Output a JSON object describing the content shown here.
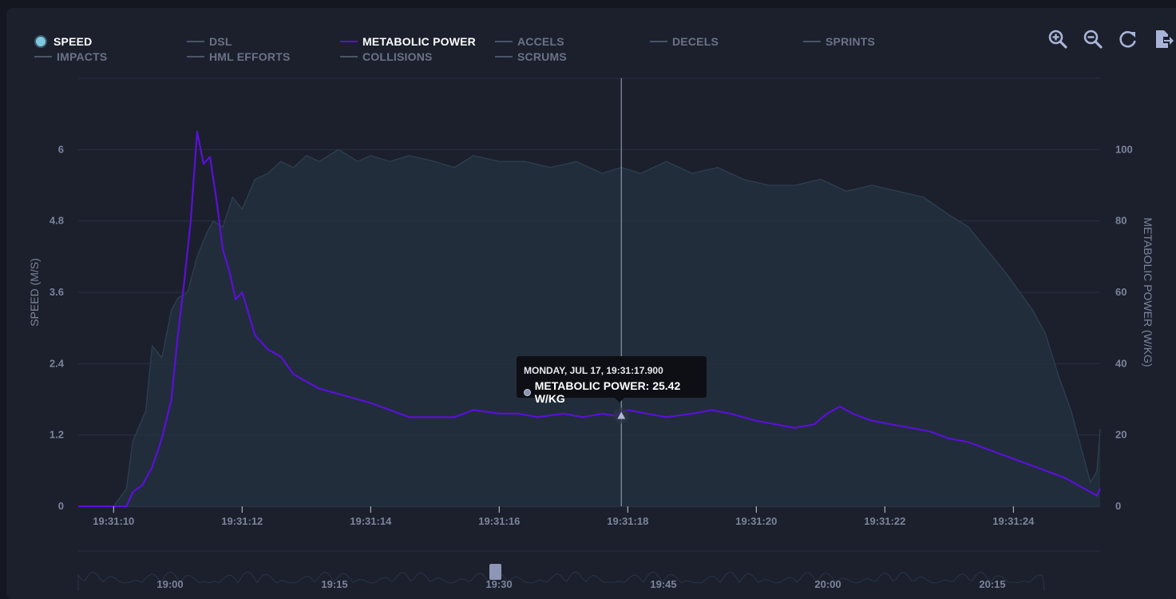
{
  "legend": {
    "items": [
      {
        "label": "SPEED",
        "active": true,
        "marker": "dot"
      },
      {
        "label": "DSL",
        "active": false
      },
      {
        "label": "METABOLIC POWER",
        "active": true,
        "marker": "line"
      },
      {
        "label": "ACCELS",
        "active": false
      },
      {
        "label": "DECELS",
        "active": false
      },
      {
        "label": "SPRINTS",
        "active": false
      },
      {
        "label": "IMPACTS",
        "active": false
      },
      {
        "label": "HML EFFORTS",
        "active": false
      },
      {
        "label": "COLLISIONS",
        "active": false
      },
      {
        "label": "SCRUMS",
        "active": false
      }
    ]
  },
  "toolbar": {
    "icons": [
      "zoom-in-icon",
      "zoom-out-icon",
      "reset-icon",
      "export-icon"
    ]
  },
  "tooltip": {
    "date": "MONDAY, JUL 17, 19:31:17.900",
    "value": "METABOLIC POWER: 25.42 W/KG"
  },
  "colors": {
    "background": "#1b202c",
    "speed_fill": "#22303e",
    "speed_line": "#2e3f50",
    "metabolic": "#5a10d8",
    "crosshair": "#8b92ad"
  },
  "chart_data": {
    "type": "line",
    "xlabel": "",
    "x_ticks": [
      "19:31:10",
      "19:31:12",
      "19:31:14",
      "19:31:16",
      "19:31:18",
      "19:31:20",
      "19:31:22",
      "19:31:24"
    ],
    "x_range": [
      9.45,
      25.35
    ],
    "y_left": {
      "label": "SPEED (M/S)",
      "ticks": [
        "0",
        "1.2",
        "2.4",
        "3.6",
        "4.8",
        "6"
      ],
      "range": [
        0,
        7.2
      ]
    },
    "y_right": {
      "label": "METABOLIC POWER (W/KG)",
      "ticks": [
        "0",
        "20",
        "40",
        "60",
        "80",
        "100"
      ],
      "range": [
        0,
        120
      ]
    },
    "series": [
      {
        "name": "SPEED",
        "axis": "left",
        "type": "area",
        "x": [
          9.45,
          10.0,
          10.2,
          10.3,
          10.5,
          10.6,
          10.75,
          10.9,
          11.0,
          11.15,
          11.3,
          11.45,
          11.55,
          11.7,
          11.85,
          12.0,
          12.2,
          12.4,
          12.6,
          12.8,
          13.0,
          13.2,
          13.5,
          13.8,
          14.0,
          14.3,
          14.6,
          15.0,
          15.3,
          15.6,
          16.0,
          16.4,
          16.8,
          17.2,
          17.6,
          17.9,
          18.2,
          18.6,
          19.0,
          19.4,
          19.8,
          20.2,
          20.6,
          21.0,
          21.4,
          21.8,
          22.2,
          22.6,
          23.0,
          23.3,
          23.6,
          23.9,
          24.1,
          24.3,
          24.5,
          24.7,
          24.9,
          25.0,
          25.1,
          25.2,
          25.3,
          25.35
        ],
        "values": [
          0,
          0,
          0.3,
          1.1,
          1.6,
          2.7,
          2.5,
          3.3,
          3.5,
          3.6,
          4.2,
          4.6,
          4.8,
          4.7,
          5.2,
          5.0,
          5.5,
          5.6,
          5.8,
          5.7,
          5.9,
          5.8,
          6.0,
          5.8,
          5.9,
          5.8,
          5.9,
          5.8,
          5.7,
          5.9,
          5.8,
          5.8,
          5.7,
          5.8,
          5.6,
          5.7,
          5.6,
          5.8,
          5.6,
          5.7,
          5.5,
          5.4,
          5.4,
          5.5,
          5.3,
          5.4,
          5.3,
          5.2,
          4.9,
          4.7,
          4.3,
          3.9,
          3.6,
          3.3,
          2.9,
          2.2,
          1.6,
          1.2,
          0.8,
          0.4,
          0.6,
          1.3
        ]
      },
      {
        "name": "METABOLIC POWER",
        "axis": "right",
        "type": "line",
        "x": [
          9.45,
          10.0,
          10.2,
          10.3,
          10.45,
          10.6,
          10.75,
          10.9,
          11.0,
          11.1,
          11.2,
          11.3,
          11.4,
          11.5,
          11.6,
          11.7,
          11.8,
          11.9,
          12.0,
          12.2,
          12.4,
          12.6,
          12.8,
          13.0,
          13.2,
          13.4,
          13.6,
          13.8,
          14.0,
          14.3,
          14.6,
          15.0,
          15.3,
          15.6,
          16.0,
          16.3,
          16.6,
          17.0,
          17.3,
          17.6,
          17.8,
          18.0,
          18.3,
          18.6,
          19.0,
          19.3,
          19.6,
          20.0,
          20.3,
          20.6,
          20.9,
          21.1,
          21.3,
          21.5,
          21.8,
          22.1,
          22.4,
          22.7,
          23.0,
          23.3,
          23.6,
          23.9,
          24.2,
          24.5,
          24.8,
          25.0,
          25.2,
          25.3,
          25.35
        ],
        "values": [
          0,
          0,
          0,
          4,
          6,
          11,
          19,
          30,
          48,
          63,
          80,
          105,
          96,
          98,
          86,
          72,
          66,
          58,
          60,
          48,
          44,
          42,
          37,
          35,
          33,
          32,
          31,
          30,
          29,
          27,
          25,
          25,
          25,
          27,
          26,
          26,
          25,
          26,
          25,
          26,
          25.42,
          27,
          26,
          25,
          26,
          27,
          26,
          24,
          23,
          22,
          23,
          26,
          28,
          26,
          24,
          23,
          22,
          21,
          19,
          18,
          16,
          14,
          12,
          10,
          8,
          6,
          4,
          3,
          5
        ]
      }
    ],
    "crosshair_x": 17.9,
    "navigator": {
      "ticks": [
        "19:00",
        "19:15",
        "19:30",
        "19:45",
        "20:00",
        "20:15"
      ]
    }
  }
}
